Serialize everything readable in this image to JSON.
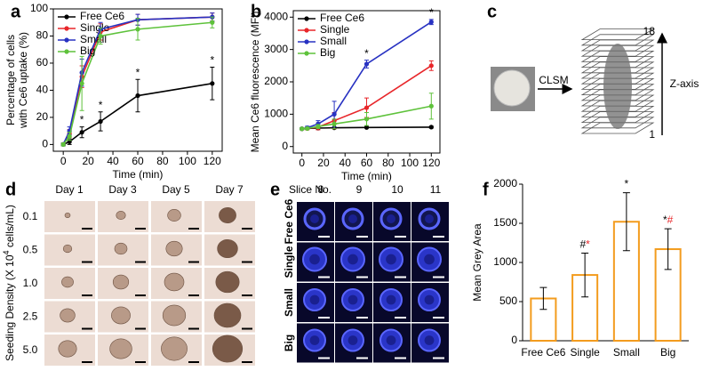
{
  "chart_data": [
    {
      "type": "line",
      "panel_label": "a",
      "xlabel": "Time (min)",
      "ylabel": [
        "Percentage of cells",
        "with Ce6 uptake (%)"
      ],
      "x": [
        0,
        5,
        15,
        30,
        60,
        120
      ],
      "xlim": [
        -8,
        128
      ],
      "xticks": [
        0,
        20,
        40,
        60,
        80,
        100,
        120
      ],
      "ylim": [
        -5,
        100
      ],
      "yticks": [
        0,
        20,
        40,
        60,
        80,
        100
      ],
      "series": [
        {
          "name": "Free Ce6",
          "color": "#000000",
          "values": [
            0,
            2,
            9,
            17,
            36,
            45
          ],
          "errors": [
            1,
            2,
            4,
            7,
            12,
            12
          ]
        },
        {
          "name": "Single",
          "color": "#e8262a",
          "values": [
            0,
            8,
            50,
            83,
            92,
            94
          ],
          "errors": [
            1,
            3,
            8,
            6,
            4,
            3
          ]
        },
        {
          "name": "Small",
          "color": "#2832c2",
          "values": [
            0,
            10,
            53,
            85,
            92,
            94
          ],
          "errors": [
            1,
            3,
            10,
            5,
            4,
            3
          ]
        },
        {
          "name": "Big",
          "color": "#5ec23b",
          "values": [
            0,
            6,
            45,
            80,
            85,
            90
          ],
          "errors": [
            1,
            3,
            20,
            6,
            8,
            4
          ]
        }
      ],
      "annotations": [
        {
          "text": "*",
          "series": "Free Ce6",
          "x": 15
        },
        {
          "text": "*",
          "series": "Free Ce6",
          "x": 30
        },
        {
          "text": "*",
          "series": "Free Ce6",
          "x": 60
        },
        {
          "text": "*",
          "series": "Free Ce6",
          "x": 120
        }
      ]
    },
    {
      "type": "line",
      "panel_label": "b",
      "xlabel": "Time (min)",
      "ylabel": [
        "Mean Ce6 fluorescence (MFI)"
      ],
      "x": [
        0,
        5,
        15,
        30,
        60,
        120
      ],
      "xlim": [
        -8,
        128
      ],
      "xticks": [
        0,
        20,
        40,
        60,
        80,
        100,
        120
      ],
      "ylim": [
        -200,
        4200
      ],
      "yticks": [
        0,
        1000,
        2000,
        3000,
        4000
      ],
      "series": [
        {
          "name": "Free Ce6",
          "color": "#000000",
          "values": [
            550,
            560,
            570,
            580,
            590,
            600
          ],
          "errors": [
            20,
            20,
            20,
            20,
            20,
            30
          ]
        },
        {
          "name": "Single",
          "color": "#e8262a",
          "values": [
            550,
            560,
            600,
            800,
            1200,
            2500
          ],
          "errors": [
            30,
            40,
            80,
            250,
            300,
            150
          ]
        },
        {
          "name": "Small",
          "color": "#2832c2",
          "values": [
            550,
            580,
            700,
            1000,
            2550,
            3850
          ],
          "errors": [
            30,
            50,
            100,
            400,
            120,
            80
          ]
        },
        {
          "name": "Big",
          "color": "#5ec23b",
          "values": [
            550,
            560,
            620,
            700,
            850,
            1250
          ],
          "errors": [
            30,
            30,
            60,
            150,
            200,
            400
          ]
        }
      ],
      "annotations": [
        {
          "text": "*",
          "series": "Small",
          "x": 60
        },
        {
          "text": "*",
          "series": "Small",
          "x": 120
        }
      ]
    },
    {
      "type": "bar",
      "panel_label": "f",
      "ylabel": "Mean Grey Area",
      "color": "#f39c1e",
      "categories": [
        "Free Ce6",
        "Single",
        "Small",
        "Big"
      ],
      "values": [
        540,
        840,
        1520,
        1170
      ],
      "errors": [
        140,
        280,
        370,
        260
      ],
      "ylim": [
        0,
        2000
      ],
      "yticks": [
        0,
        500,
        1000,
        1500,
        2000
      ],
      "annotations": [
        {
          "at": "Single",
          "parts": [
            {
              "text": "#",
              "color": "#000000"
            },
            {
              "text": "*",
              "color": "#e8262a"
            }
          ]
        },
        {
          "at": "Small",
          "parts": [
            {
              "text": "*",
              "color": "#000000"
            }
          ]
        },
        {
          "at": "Big",
          "parts": [
            {
              "text": "*",
              "color": "#000000"
            },
            {
              "text": "#",
              "color": "#e8262a"
            }
          ]
        }
      ]
    }
  ],
  "panels": {
    "c": {
      "panel_label": "c",
      "method": "CLSM",
      "top": "18",
      "bottom": "1",
      "axis": "Z-axis"
    },
    "d": {
      "panel_label": "d",
      "columns": [
        "Day 1",
        "Day 3",
        "Day 5",
        "Day 7"
      ],
      "rows": [
        "0.1",
        "0.5",
        "1.0",
        "2.5",
        "5.0"
      ],
      "ylabel": [
        "Seeding Density (X 10",
        "4",
        " cells/mL)"
      ]
    },
    "e": {
      "panel_label": "e",
      "slice_label": "Slice No.",
      "columns": [
        "8",
        "9",
        "10",
        "11"
      ],
      "rows": [
        "Free Ce6",
        "Single",
        "Small",
        "Big"
      ]
    }
  }
}
